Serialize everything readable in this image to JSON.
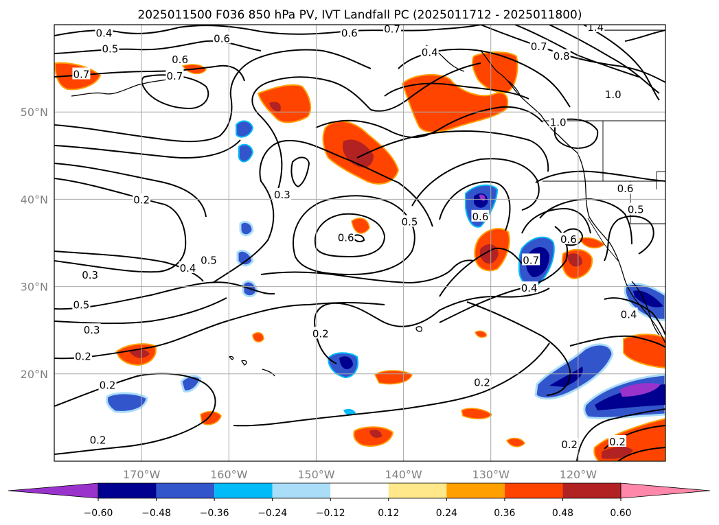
{
  "title": "2025011500 F036 850 hPa PV, IVT Landfall PC (2025011712 - 2025011800)",
  "map": {
    "lon_range": [
      -180,
      -110
    ],
    "lat_range": [
      10,
      60
    ],
    "lon_ticks": [
      {
        "value": -170,
        "label": "170°W"
      },
      {
        "value": -160,
        "label": "160°W"
      },
      {
        "value": -150,
        "label": "150°W"
      },
      {
        "value": -140,
        "label": "140°W"
      },
      {
        "value": -130,
        "label": "130°W"
      },
      {
        "value": -120,
        "label": "120°W"
      }
    ],
    "lat_ticks": [
      {
        "value": 20,
        "label": "20°N"
      },
      {
        "value": 30,
        "label": "30°N"
      },
      {
        "value": 40,
        "label": "40°N"
      },
      {
        "value": 50,
        "label": "50°N"
      }
    ],
    "grid": true,
    "field": "IVT landfall PC (shaded), 850 hPa PV (contours)"
  },
  "colorbar": {
    "ticks": [
      "−0.60",
      "−0.48",
      "−0.36",
      "−0.24",
      "−0.12",
      "0.12",
      "0.24",
      "0.36",
      "0.48",
      "0.60"
    ],
    "colors": [
      "#9933cc",
      "#000090",
      "#3355cc",
      "#00bbf8",
      "#aaddf8",
      "#ffffff",
      "#ffe88a",
      "#ffa000",
      "#ff4400",
      "#b22222",
      "#ff88aa"
    ],
    "extend": "both"
  },
  "contour_labels": [
    {
      "text": "0.4",
      "lon": -174.3,
      "lat": 59.0
    },
    {
      "text": "0.5",
      "lon": -173.6,
      "lat": 57.2
    },
    {
      "text": "0.6",
      "lon": -160.8,
      "lat": 58.4
    },
    {
      "text": "0.6",
      "lon": -165.6,
      "lat": 56.0
    },
    {
      "text": "0.7",
      "lon": -176.9,
      "lat": 54.3
    },
    {
      "text": "0.7",
      "lon": -166.2,
      "lat": 54.1
    },
    {
      "text": "0.6",
      "lon": -146.2,
      "lat": 59.0
    },
    {
      "text": "0.7",
      "lon": -141.3,
      "lat": 59.5
    },
    {
      "text": "0.4",
      "lon": -137.0,
      "lat": 56.8
    },
    {
      "text": "1.4",
      "lon": -118.0,
      "lat": 59.7
    },
    {
      "text": "0.7",
      "lon": -124.5,
      "lat": 57.5
    },
    {
      "text": "0.8",
      "lon": -121.9,
      "lat": 56.4
    },
    {
      "text": "1.0",
      "lon": -116.0,
      "lat": 52.0
    },
    {
      "text": "1.0",
      "lon": -122.3,
      "lat": 48.8
    },
    {
      "text": "0.3",
      "lon": -153.9,
      "lat": 40.5
    },
    {
      "text": "0.2",
      "lon": -170.0,
      "lat": 39.9
    },
    {
      "text": "0.6",
      "lon": -146.6,
      "lat": 35.6
    },
    {
      "text": "0.5",
      "lon": -139.3,
      "lat": 37.4
    },
    {
      "text": "0.6",
      "lon": -131.2,
      "lat": 38.0
    },
    {
      "text": "0.4",
      "lon": -164.7,
      "lat": 32.1
    },
    {
      "text": "0.5",
      "lon": -162.3,
      "lat": 33.0
    },
    {
      "text": "0.3",
      "lon": -175.9,
      "lat": 31.3
    },
    {
      "text": "0.5",
      "lon": -176.9,
      "lat": 27.9
    },
    {
      "text": "0.3",
      "lon": -175.7,
      "lat": 25.0
    },
    {
      "text": "0.2",
      "lon": -176.7,
      "lat": 22.0
    },
    {
      "text": "0.2",
      "lon": -173.9,
      "lat": 18.7
    },
    {
      "text": "0.2",
      "lon": -175.0,
      "lat": 12.4
    },
    {
      "text": "0.2",
      "lon": -149.5,
      "lat": 24.6
    },
    {
      "text": "0.2",
      "lon": -131.0,
      "lat": 19.0
    },
    {
      "text": "0.4",
      "lon": -125.6,
      "lat": 29.8
    },
    {
      "text": "0.7",
      "lon": -125.4,
      "lat": 33.0
    },
    {
      "text": "0.6",
      "lon": -121.1,
      "lat": 35.4
    },
    {
      "text": "0.4",
      "lon": -114.2,
      "lat": 26.8
    },
    {
      "text": "0.6",
      "lon": -114.6,
      "lat": 41.2
    },
    {
      "text": "0.5",
      "lon": -113.4,
      "lat": 38.8
    },
    {
      "text": "0.2",
      "lon": -121.0,
      "lat": 11.9
    },
    {
      "text": "0.2",
      "lon": -115.5,
      "lat": 12.2
    }
  ]
}
